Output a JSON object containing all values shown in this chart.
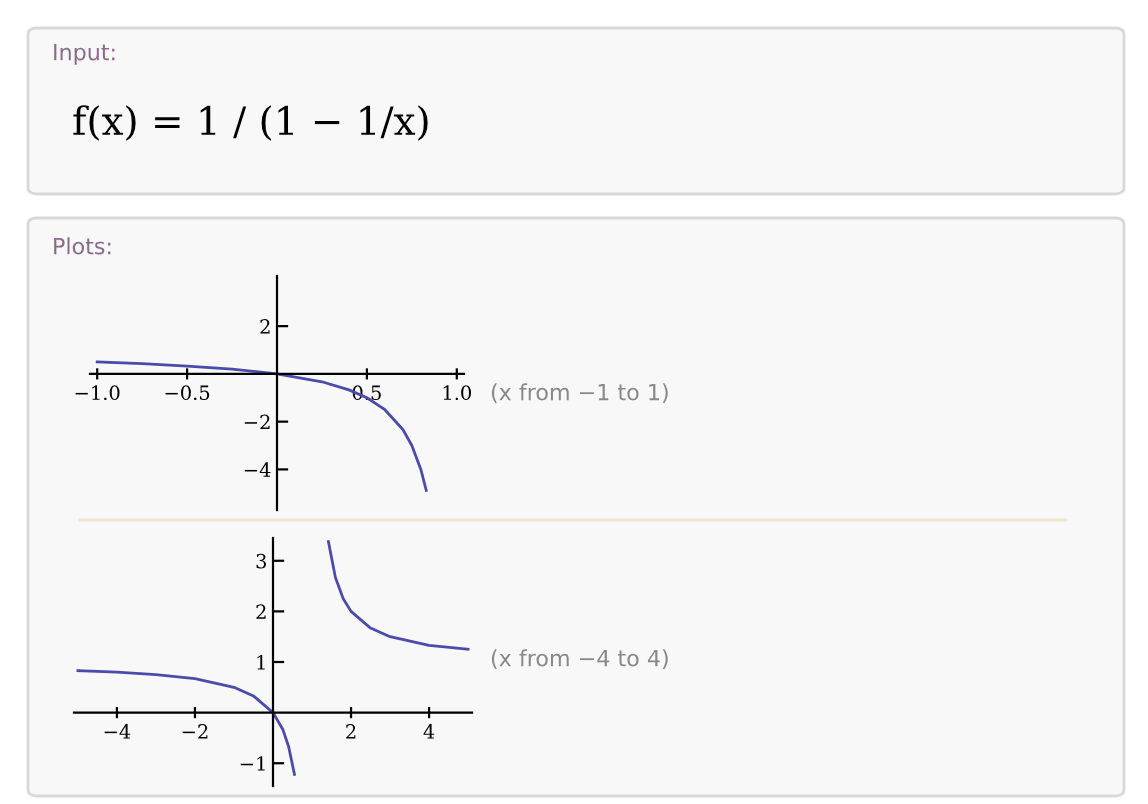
{
  "chart_data": [
    {
      "type": "line",
      "annotations": [
        "Input:",
        "f(x) = 1 / (1 − 1/x)",
        "Plots:",
        "(x from −1 to 1)"
      ],
      "xlim": [
        -1.04,
        1.04
      ],
      "ylim": [
        -5.7,
        4.1
      ],
      "xticks": [
        {
          "value": -1.0,
          "label": "−1.0"
        },
        {
          "value": -0.5,
          "label": "−0.5"
        },
        {
          "value": 0.5,
          "label": "0.5"
        },
        {
          "value": 1.0,
          "label": "1.0"
        }
      ],
      "yticks": [
        {
          "value": 2,
          "label": "2"
        },
        {
          "value": -2,
          "label": "−2"
        },
        {
          "value": -4,
          "label": "−4"
        }
      ],
      "grid": false,
      "legend": false,
      "series": [
        {
          "color": "#4b4bab",
          "x": [
            -1,
            -0.75,
            -0.5,
            -0.25,
            0,
            0.25,
            0.4,
            0.5,
            0.6,
            0.7,
            0.75,
            0.8,
            0.83
          ],
          "values": [
            0.5,
            0.43,
            0.33,
            0.2,
            0,
            -0.33,
            -0.67,
            -1,
            -1.5,
            -2.33,
            -3,
            -4,
            -4.88
          ]
        }
      ]
    },
    {
      "type": "line",
      "annotations": [
        "(x from −4 to 4)"
      ],
      "xlim": [
        -5.1,
        5.1
      ],
      "ylim": [
        -1.45,
        3.45
      ],
      "xticks": [
        {
          "value": -4,
          "label": "−4"
        },
        {
          "value": -2,
          "label": "−2"
        },
        {
          "value": 2,
          "label": "2"
        },
        {
          "value": 4,
          "label": "4"
        }
      ],
      "yticks": [
        {
          "value": -1,
          "label": "−1"
        },
        {
          "value": 1,
          "label": "1"
        },
        {
          "value": 2,
          "label": "2"
        },
        {
          "value": 3,
          "label": "3"
        }
      ],
      "grid": false,
      "legend": false,
      "series": [
        {
          "color": "#4b4bab",
          "x": [
            -5,
            -4,
            -3,
            -2,
            -1,
            -0.5,
            0,
            0.25,
            0.4,
            0.55,
            1,
            1.42,
            1.6,
            1.8,
            2,
            2.5,
            3,
            4,
            5
          ],
          "values": [
            0.83,
            0.8,
            0.75,
            0.67,
            0.5,
            0.33,
            0,
            -0.33,
            -0.67,
            -1.22,
            null,
            3.38,
            2.67,
            2.25,
            2,
            1.67,
            1.5,
            1.33,
            1.25
          ]
        }
      ]
    }
  ]
}
